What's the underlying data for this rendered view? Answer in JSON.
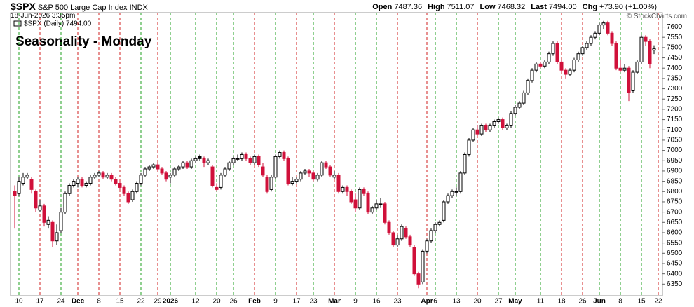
{
  "header": {
    "symbol": "$SPX",
    "name": "S&P 500 Large Cap Index",
    "exchange": "INDX",
    "timestamp": "18-Jun-2026 3:35pm",
    "copyright": "© StockCharts.com",
    "quote": [
      {
        "label": "Open",
        "value": "7487.36"
      },
      {
        "label": "High",
        "value": "7511.07"
      },
      {
        "label": "Low",
        "value": "7468.32"
      },
      {
        "label": "Last",
        "value": "7494.00"
      },
      {
        "label": "Chg",
        "value": "+73.90 (+1.00%)"
      }
    ]
  },
  "chart_data": {
    "type": "candlestick",
    "title": "Seasonality - Monday",
    "legend": "$SPX (Daily) 7494.00",
    "up_color": "#000000",
    "down_color": "#d0103a",
    "title_color": "#1a1adb",
    "ylim": [
      6300,
      7670
    ],
    "yticks": [
      6350,
      6400,
      6450,
      6500,
      6550,
      6600,
      6650,
      6700,
      6750,
      6800,
      6850,
      6900,
      6950,
      7000,
      7050,
      7100,
      7150,
      7200,
      7250,
      7300,
      7350,
      7400,
      7450,
      7500,
      7550,
      7600
    ],
    "categories": [
      null,
      "10",
      null,
      null,
      null,
      null,
      "17",
      null,
      null,
      null,
      null,
      "24",
      null,
      null,
      null,
      "Dec",
      null,
      null,
      null,
      null,
      "8",
      null,
      null,
      null,
      null,
      "15",
      null,
      null,
      null,
      null,
      "22",
      null,
      null,
      null,
      "29",
      null,
      null,
      "2026",
      null,
      null,
      null,
      null,
      null,
      "12",
      null,
      null,
      null,
      null,
      "20",
      null,
      null,
      null,
      "26",
      null,
      null,
      null,
      null,
      "Feb",
      null,
      null,
      null,
      null,
      "9",
      null,
      null,
      null,
      null,
      "17",
      null,
      null,
      null,
      "23",
      null,
      null,
      null,
      null,
      "Mar",
      null,
      null,
      null,
      null,
      "9",
      null,
      null,
      null,
      null,
      "16",
      null,
      null,
      null,
      null,
      "23",
      null,
      null,
      null,
      null,
      null,
      null,
      "Apr",
      null,
      "6",
      null,
      null,
      null,
      null,
      "13",
      null,
      null,
      null,
      null,
      "20",
      null,
      null,
      null,
      null,
      "27",
      null,
      null,
      null,
      "May",
      null,
      null,
      null,
      null,
      null,
      "11",
      null,
      null,
      null,
      null,
      "18",
      null,
      null,
      null,
      null,
      "26",
      null,
      null,
      null,
      "Jun",
      null,
      null,
      null,
      null,
      "8",
      null,
      null,
      null,
      null,
      "15",
      null,
      null,
      null,
      "22"
    ],
    "vline_colors": [
      "#22a022",
      "#d02020",
      "#22a022",
      "#d02020",
      "#d02020",
      "#d02020",
      "#22a022",
      "#d02020",
      "#22a022",
      "#22a022",
      "#22a022",
      "#22a022",
      "#d02020",
      "#22a022",
      "#d02020",
      "#22a022",
      "#d02020",
      "#22a022",
      "#22a022",
      "#d02020",
      "#d02020",
      "#22a022",
      "#22a022",
      "#d02020",
      "#22a022",
      "#22a022",
      "#22a022",
      "#d02020",
      "#d02020",
      "#22a022",
      "#22a022",
      "#22a022",
      "#d02020"
    ],
    "ohlc": [
      [
        6800,
        6830,
        6620,
        6780
      ],
      [
        6790,
        6870,
        6780,
        6850
      ],
      [
        6840,
        6890,
        6830,
        6870
      ],
      [
        6870,
        6890,
        6860,
        6880
      ],
      [
        6860,
        6870,
        6790,
        6810
      ],
      [
        6800,
        6810,
        6700,
        6720
      ],
      [
        6710,
        6760,
        6700,
        6730
      ],
      [
        6730,
        6740,
        6630,
        6650
      ],
      [
        6640,
        6680,
        6620,
        6660
      ],
      [
        6650,
        6660,
        6530,
        6560
      ],
      [
        6560,
        6640,
        6540,
        6600
      ],
      [
        6610,
        6720,
        6600,
        6700
      ],
      [
        6700,
        6800,
        6690,
        6790
      ],
      [
        6790,
        6840,
        6780,
        6830
      ],
      [
        6830,
        6860,
        6820,
        6850
      ],
      [
        6840,
        6870,
        6820,
        6860
      ],
      [
        6860,
        6870,
        6820,
        6830
      ],
      [
        6830,
        6850,
        6820,
        6840
      ],
      [
        6840,
        6880,
        6830,
        6870
      ],
      [
        6870,
        6890,
        6860,
        6880
      ],
      [
        6880,
        6900,
        6870,
        6890
      ],
      [
        6890,
        6900,
        6860,
        6870
      ],
      [
        6870,
        6890,
        6860,
        6880
      ],
      [
        6880,
        6890,
        6850,
        6860
      ],
      [
        6860,
        6870,
        6830,
        6840
      ],
      [
        6840,
        6850,
        6810,
        6820
      ],
      [
        6820,
        6830,
        6780,
        6790
      ],
      [
        6790,
        6800,
        6740,
        6750
      ],
      [
        6760,
        6810,
        6750,
        6800
      ],
      [
        6800,
        6850,
        6790,
        6840
      ],
      [
        6840,
        6890,
        6830,
        6880
      ],
      [
        6880,
        6920,
        6870,
        6910
      ],
      [
        6910,
        6930,
        6900,
        6920
      ],
      [
        6920,
        6940,
        6910,
        6930
      ],
      [
        6930,
        6940,
        6900,
        6910
      ],
      [
        6910,
        6920,
        6880,
        6890
      ],
      [
        6890,
        6900,
        6850,
        6860
      ],
      [
        6870,
        6890,
        6840,
        6880
      ],
      [
        6880,
        6920,
        6870,
        6910
      ],
      [
        6910,
        6930,
        6900,
        6920
      ],
      [
        6920,
        6950,
        6910,
        6940
      ],
      [
        6940,
        6950,
        6910,
        6920
      ],
      [
        6920,
        6960,
        6910,
        6950
      ],
      [
        6950,
        6970,
        6940,
        6960
      ],
      [
        6970,
        6980,
        6950,
        6960
      ],
      [
        6960,
        6970,
        6920,
        6940
      ],
      [
        6940,
        6960,
        6930,
        6950
      ],
      [
        6920,
        6930,
        6820,
        6830
      ],
      [
        6820,
        6840,
        6800,
        6810
      ],
      [
        6820,
        6890,
        6810,
        6880
      ],
      [
        6880,
        6920,
        6870,
        6910
      ],
      [
        6910,
        6950,
        6900,
        6940
      ],
      [
        6940,
        6970,
        6930,
        6960
      ],
      [
        6960,
        6980,
        6950,
        6960
      ],
      [
        6960,
        6990,
        6950,
        6980
      ],
      [
        6980,
        6990,
        6950,
        6960
      ],
      [
        6960,
        6970,
        6930,
        6940
      ],
      [
        6940,
        6980,
        6930,
        6970
      ],
      [
        6970,
        6980,
        6920,
        6930
      ],
      [
        6920,
        6940,
        6870,
        6880
      ],
      [
        6870,
        6880,
        6790,
        6800
      ],
      [
        6810,
        6880,
        6800,
        6870
      ],
      [
        6870,
        6980,
        6860,
        6970
      ],
      [
        6970,
        7000,
        6960,
        6990
      ],
      [
        6990,
        7000,
        6950,
        6960
      ],
      [
        6960,
        6970,
        6830,
        6840
      ],
      [
        6840,
        6870,
        6830,
        6850
      ],
      [
        6850,
        6870,
        6840,
        6860
      ],
      [
        6860,
        6900,
        6850,
        6890
      ],
      [
        6890,
        6910,
        6880,
        6900
      ],
      [
        6900,
        6910,
        6870,
        6890
      ],
      [
        6890,
        6900,
        6850,
        6860
      ],
      [
        6860,
        6890,
        6850,
        6880
      ],
      [
        6880,
        6950,
        6870,
        6940
      ],
      [
        6940,
        6950,
        6910,
        6920
      ],
      [
        6920,
        6930,
        6870,
        6880
      ],
      [
        6870,
        6900,
        6860,
        6880
      ],
      [
        6880,
        6890,
        6790,
        6800
      ],
      [
        6800,
        6830,
        6790,
        6820
      ],
      [
        6820,
        6830,
        6780,
        6800
      ],
      [
        6800,
        6810,
        6740,
        6750
      ],
      [
        6760,
        6790,
        6700,
        6720
      ],
      [
        6720,
        6820,
        6710,
        6810
      ],
      [
        6810,
        6820,
        6780,
        6790
      ],
      [
        6790,
        6800,
        6690,
        6700
      ],
      [
        6700,
        6730,
        6690,
        6720
      ],
      [
        6720,
        6760,
        6710,
        6740
      ],
      [
        6740,
        6770,
        6720,
        6740
      ],
      [
        6740,
        6750,
        6640,
        6650
      ],
      [
        6650,
        6660,
        6590,
        6600
      ],
      [
        6600,
        6610,
        6530,
        6540
      ],
      [
        6540,
        6590,
        6530,
        6570
      ],
      [
        6570,
        6640,
        6560,
        6630
      ],
      [
        6620,
        6630,
        6570,
        6580
      ],
      [
        6580,
        6590,
        6530,
        6540
      ],
      [
        6530,
        6540,
        6390,
        6400
      ],
      [
        6400,
        6410,
        6330,
        6350
      ],
      [
        6360,
        6520,
        6350,
        6510
      ],
      [
        6510,
        6570,
        6500,
        6560
      ],
      [
        6560,
        6620,
        6550,
        6610
      ],
      [
        6610,
        6650,
        6600,
        6640
      ],
      [
        6640,
        6660,
        6630,
        6650
      ],
      [
        6660,
        6760,
        6650,
        6750
      ],
      [
        6750,
        6790,
        6740,
        6780
      ],
      [
        6780,
        6810,
        6770,
        6800
      ],
      [
        6800,
        6820,
        6780,
        6800
      ],
      [
        6800,
        6900,
        6790,
        6890
      ],
      [
        6890,
        6990,
        6880,
        6980
      ],
      [
        6980,
        7060,
        6970,
        7050
      ],
      [
        7050,
        7110,
        7040,
        7100
      ],
      [
        7100,
        7120,
        7070,
        7080
      ],
      [
        7080,
        7130,
        7070,
        7120
      ],
      [
        7120,
        7130,
        7090,
        7100
      ],
      [
        7100,
        7130,
        7090,
        7120
      ],
      [
        7120,
        7150,
        7110,
        7140
      ],
      [
        7140,
        7160,
        7130,
        7150
      ],
      [
        7150,
        7160,
        7100,
        7110
      ],
      [
        7110,
        7130,
        7100,
        7120
      ],
      [
        7120,
        7190,
        7110,
        7180
      ],
      [
        7180,
        7220,
        7170,
        7210
      ],
      [
        7210,
        7240,
        7200,
        7230
      ],
      [
        7230,
        7290,
        7220,
        7280
      ],
      [
        7280,
        7350,
        7270,
        7340
      ],
      [
        7340,
        7400,
        7330,
        7390
      ],
      [
        7390,
        7430,
        7380,
        7420
      ],
      [
        7420,
        7430,
        7400,
        7410
      ],
      [
        7410,
        7440,
        7400,
        7430
      ],
      [
        7430,
        7480,
        7420,
        7470
      ],
      [
        7470,
        7530,
        7460,
        7520
      ],
      [
        7520,
        7530,
        7420,
        7430
      ],
      [
        7430,
        7440,
        7380,
        7390
      ],
      [
        7390,
        7400,
        7350,
        7370
      ],
      [
        7370,
        7400,
        7360,
        7390
      ],
      [
        7390,
        7450,
        7380,
        7440
      ],
      [
        7440,
        7480,
        7430,
        7470
      ],
      [
        7470,
        7510,
        7460,
        7500
      ],
      [
        7500,
        7530,
        7490,
        7520
      ],
      [
        7520,
        7560,
        7510,
        7550
      ],
      [
        7550,
        7580,
        7540,
        7570
      ],
      [
        7570,
        7620,
        7560,
        7610
      ],
      [
        7610,
        7630,
        7590,
        7620
      ],
      [
        7620,
        7630,
        7560,
        7570
      ],
      [
        7570,
        7580,
        7510,
        7520
      ],
      [
        7520,
        7530,
        7390,
        7400
      ],
      [
        7400,
        7440,
        7380,
        7390
      ],
      [
        7390,
        7420,
        7380,
        7400
      ],
      [
        7400,
        7410,
        7240,
        7280
      ],
      [
        7290,
        7390,
        7280,
        7380
      ],
      [
        7380,
        7440,
        7370,
        7430
      ],
      [
        7430,
        7560,
        7420,
        7550
      ],
      [
        7550,
        7560,
        7510,
        7530
      ],
      [
        7530,
        7540,
        7400,
        7420
      ],
      [
        7487.36,
        7511.07,
        7468.32,
        7494
      ],
      null
    ]
  }
}
